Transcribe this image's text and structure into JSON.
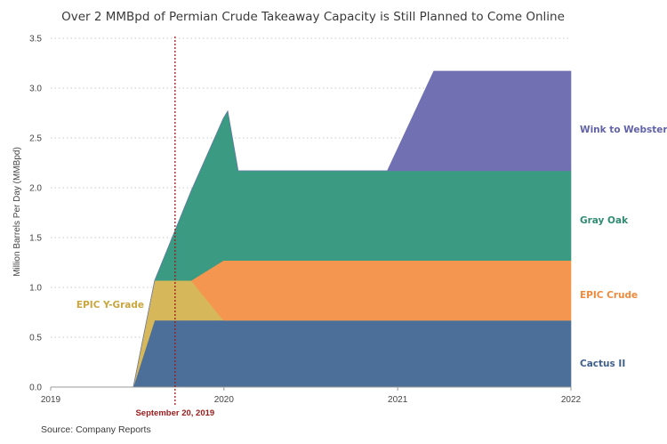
{
  "chart_data": {
    "type": "area",
    "title": "Over 2 MMBpd of Permian Crude Takeaway Capacity is Still Planned to Come Online",
    "ylabel": "Million Barrels Per Day (MMBpd)",
    "xlabel": "",
    "ylim": [
      0,
      3.5
    ],
    "yticks": [
      "0.0",
      "0.5",
      "1.0",
      "1.5",
      "2.0",
      "2.5",
      "3.0",
      "3.5"
    ],
    "xlim": [
      "2019-01-01",
      "2022-01-01"
    ],
    "xticks": [
      {
        "label": "2019",
        "date": "2019-01-01"
      },
      {
        "label": "2020",
        "date": "2020-01-01"
      },
      {
        "label": "2021",
        "date": "2021-01-01"
      },
      {
        "label": "2022",
        "date": "2022-01-01"
      }
    ],
    "grid": "horizontal-dotted",
    "stacked": true,
    "series": [
      {
        "name": "Cactus II",
        "color": "#4c6f99",
        "points": [
          [
            "2019-06-24",
            0
          ],
          [
            "2019-08-08",
            0.67
          ],
          [
            "2022-01-01",
            0.67
          ]
        ]
      },
      {
        "name": "EPIC Y-Grade",
        "color": "#d6b85a",
        "points": [
          [
            "2019-06-24",
            0
          ],
          [
            "2019-08-08",
            0
          ],
          [
            "2019-08-08",
            0.4
          ],
          [
            "2019-10-24",
            0.4
          ],
          [
            "2019-12-31",
            0
          ],
          [
            "2022-01-01",
            0
          ]
        ]
      },
      {
        "name": "EPIC Crude",
        "color": "#f4964f",
        "points": [
          [
            "2019-06-24",
            0
          ],
          [
            "2019-10-24",
            0
          ],
          [
            "2019-12-31",
            0.6
          ],
          [
            "2022-01-01",
            0.6
          ]
        ]
      },
      {
        "name": "Gray Oak",
        "color": "#3a9a82",
        "points": [
          [
            "2019-06-24",
            0
          ],
          [
            "2019-08-08",
            0
          ],
          [
            "2019-10-24",
            0.9
          ],
          [
            "2020-01-09",
            1.5
          ],
          [
            "2020-01-31",
            1.5
          ],
          [
            "2020-01-31",
            0.9
          ],
          [
            "2022-01-01",
            0.9
          ]
        ]
      },
      {
        "name": "Wink to Webster",
        "color": "#7070b2",
        "points": [
          [
            "2020-12-10",
            0
          ],
          [
            "2021-03-18",
            1.0
          ],
          [
            "2022-01-01",
            1.0
          ]
        ]
      }
    ],
    "annotations": [
      {
        "type": "vertical-line",
        "date": "2019-09-20",
        "label": "September 20, 2019",
        "color": "#9b1b1b"
      }
    ]
  },
  "source": "Source: Company Reports"
}
